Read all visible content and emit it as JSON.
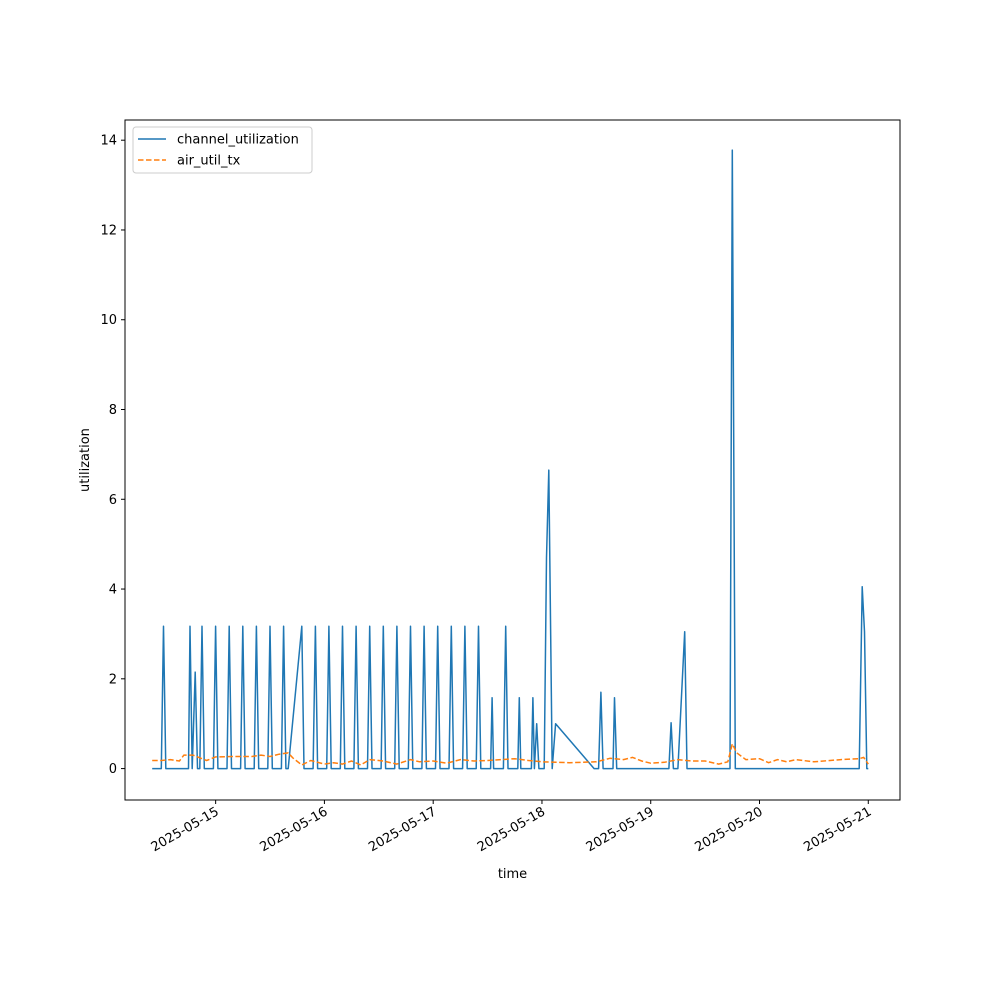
{
  "chart_data": {
    "type": "line",
    "title": "",
    "xlabel": "time",
    "ylabel": "utilization",
    "x_axis_type": "date",
    "xlim": [
      "2025-05-14 04:00",
      "2025-05-21 07:00"
    ],
    "ylim": [
      -0.7,
      14.45
    ],
    "x_ticks": [
      "2025-05-15",
      "2025-05-16",
      "2025-05-17",
      "2025-05-18",
      "2025-05-19",
      "2025-05-20",
      "2025-05-21"
    ],
    "y_ticks": [
      0,
      2,
      4,
      6,
      8,
      10,
      12,
      14
    ],
    "grid": false,
    "legend_position": "top-left",
    "series": [
      {
        "name": "channel_utilization",
        "color": "#1f77b4",
        "style": "solid",
        "points": [
          [
            "2025-05-14 10:00",
            0
          ],
          [
            "2025-05-14 11:00",
            0
          ],
          [
            "2025-05-14 12:00",
            0
          ],
          [
            "2025-05-14 12:30",
            3.17
          ],
          [
            "2025-05-14 13:00",
            0
          ],
          [
            "2025-05-14 14:00",
            0
          ],
          [
            "2025-05-14 17:00",
            0
          ],
          [
            "2025-05-14 18:00",
            0
          ],
          [
            "2025-05-14 18:20",
            3.17
          ],
          [
            "2025-05-14 18:50",
            0
          ],
          [
            "2025-05-14 19:30",
            2.15
          ],
          [
            "2025-05-14 20:00",
            0
          ],
          [
            "2025-05-14 20:30",
            0
          ],
          [
            "2025-05-14 21:00",
            3.17
          ],
          [
            "2025-05-14 21:30",
            0
          ],
          [
            "2025-05-14 23:30",
            0
          ],
          [
            "2025-05-15 00:00",
            3.17
          ],
          [
            "2025-05-15 00:30",
            0
          ],
          [
            "2025-05-15 02:30",
            0
          ],
          [
            "2025-05-15 03:00",
            3.17
          ],
          [
            "2025-05-15 03:30",
            0
          ],
          [
            "2025-05-15 05:30",
            0
          ],
          [
            "2025-05-15 06:00",
            3.17
          ],
          [
            "2025-05-15 06:30",
            0
          ],
          [
            "2025-05-15 08:30",
            0
          ],
          [
            "2025-05-15 09:00",
            3.17
          ],
          [
            "2025-05-15 09:30",
            0
          ],
          [
            "2025-05-15 11:30",
            0
          ],
          [
            "2025-05-15 12:00",
            3.17
          ],
          [
            "2025-05-15 12:30",
            0
          ],
          [
            "2025-05-15 14:30",
            0
          ],
          [
            "2025-05-15 15:00",
            3.17
          ],
          [
            "2025-05-15 15:30",
            0
          ],
          [
            "2025-05-15 16:00",
            0
          ],
          [
            "2025-05-15 19:00",
            3.17
          ],
          [
            "2025-05-15 19:30",
            0
          ],
          [
            "2025-05-15 21:30",
            0
          ],
          [
            "2025-05-15 22:00",
            3.17
          ],
          [
            "2025-05-15 22:30",
            0
          ],
          [
            "2025-05-16 00:30",
            0
          ],
          [
            "2025-05-16 01:00",
            3.17
          ],
          [
            "2025-05-16 01:30",
            0
          ],
          [
            "2025-05-16 03:30",
            0
          ],
          [
            "2025-05-16 04:00",
            3.17
          ],
          [
            "2025-05-16 04:30",
            0
          ],
          [
            "2025-05-16 06:30",
            0
          ],
          [
            "2025-05-16 07:00",
            3.17
          ],
          [
            "2025-05-16 07:30",
            0
          ],
          [
            "2025-05-16 09:30",
            0
          ],
          [
            "2025-05-16 10:00",
            3.17
          ],
          [
            "2025-05-16 10:30",
            0
          ],
          [
            "2025-05-16 12:30",
            0
          ],
          [
            "2025-05-16 13:00",
            3.17
          ],
          [
            "2025-05-16 13:30",
            0
          ],
          [
            "2025-05-16 15:30",
            0
          ],
          [
            "2025-05-16 16:00",
            3.17
          ],
          [
            "2025-05-16 16:30",
            0
          ],
          [
            "2025-05-16 18:30",
            0
          ],
          [
            "2025-05-16 19:00",
            3.17
          ],
          [
            "2025-05-16 19:30",
            0
          ],
          [
            "2025-05-16 21:30",
            0
          ],
          [
            "2025-05-16 22:00",
            3.17
          ],
          [
            "2025-05-16 22:30",
            0
          ],
          [
            "2025-05-17 00:30",
            0
          ],
          [
            "2025-05-17 01:00",
            3.17
          ],
          [
            "2025-05-17 01:30",
            0
          ],
          [
            "2025-05-17 03:30",
            0
          ],
          [
            "2025-05-17 04:00",
            3.17
          ],
          [
            "2025-05-17 04:30",
            0
          ],
          [
            "2025-05-17 06:30",
            0
          ],
          [
            "2025-05-17 07:00",
            3.17
          ],
          [
            "2025-05-17 07:30",
            0
          ],
          [
            "2025-05-17 09:30",
            0
          ],
          [
            "2025-05-17 10:00",
            3.17
          ],
          [
            "2025-05-17 10:30",
            0
          ],
          [
            "2025-05-17 12:40",
            0
          ],
          [
            "2025-05-17 13:00",
            1.58
          ],
          [
            "2025-05-17 13:20",
            0
          ],
          [
            "2025-05-17 15:30",
            0
          ],
          [
            "2025-05-17 16:00",
            3.17
          ],
          [
            "2025-05-17 16:30",
            0
          ],
          [
            "2025-05-17 18:40",
            0
          ],
          [
            "2025-05-17 19:00",
            1.58
          ],
          [
            "2025-05-17 19:20",
            0
          ],
          [
            "2025-05-17 21:40",
            0
          ],
          [
            "2025-05-17 22:00",
            1.58
          ],
          [
            "2025-05-17 22:20",
            0
          ],
          [
            "2025-05-17 22:50",
            1.0
          ],
          [
            "2025-05-17 23:20",
            0
          ],
          [
            "2025-05-18 00:30",
            0
          ],
          [
            "2025-05-18 01:00",
            4.7
          ],
          [
            "2025-05-18 01:30",
            6.65
          ],
          [
            "2025-05-18 02:15",
            0
          ],
          [
            "2025-05-18 03:00",
            1.0
          ],
          [
            "2025-05-18 11:30",
            0
          ],
          [
            "2025-05-18 12:30",
            0
          ],
          [
            "2025-05-18 13:00",
            1.7
          ],
          [
            "2025-05-18 13:30",
            0
          ],
          [
            "2025-05-18 15:40",
            0
          ],
          [
            "2025-05-18 16:00",
            1.58
          ],
          [
            "2025-05-18 16:30",
            0
          ],
          [
            "2025-05-19 04:00",
            0
          ],
          [
            "2025-05-19 04:30",
            1.02
          ],
          [
            "2025-05-19 05:00",
            0
          ],
          [
            "2025-05-19 06:00",
            0
          ],
          [
            "2025-05-19 07:30",
            3.05
          ],
          [
            "2025-05-19 08:00",
            0
          ],
          [
            "2025-05-19 17:30",
            0
          ],
          [
            "2025-05-19 18:00",
            13.78
          ],
          [
            "2025-05-19 18:40",
            0
          ],
          [
            "2025-05-20 22:00",
            0
          ],
          [
            "2025-05-20 22:40",
            4.05
          ],
          [
            "2025-05-20 23:10",
            3.05
          ],
          [
            "2025-05-20 23:40",
            0
          ],
          [
            "2025-05-21 00:00",
            0
          ]
        ]
      },
      {
        "name": "air_util_tx",
        "color": "#ff7f0e",
        "style": "dashed",
        "points": [
          [
            "2025-05-14 10:00",
            0.18
          ],
          [
            "2025-05-14 12:00",
            0.18
          ],
          [
            "2025-05-14 14:00",
            0.2
          ],
          [
            "2025-05-14 16:00",
            0.17
          ],
          [
            "2025-05-14 17:00",
            0.3
          ],
          [
            "2025-05-14 19:00",
            0.3
          ],
          [
            "2025-05-14 21:00",
            0.22
          ],
          [
            "2025-05-14 22:00",
            0.18
          ],
          [
            "2025-05-15 00:00",
            0.26
          ],
          [
            "2025-05-15 04:00",
            0.27
          ],
          [
            "2025-05-15 08:00",
            0.27
          ],
          [
            "2025-05-15 10:00",
            0.3
          ],
          [
            "2025-05-15 12:00",
            0.27
          ],
          [
            "2025-05-15 14:00",
            0.32
          ],
          [
            "2025-05-15 16:00",
            0.35
          ],
          [
            "2025-05-15 17:00",
            0.24
          ],
          [
            "2025-05-15 19:00",
            0.08
          ],
          [
            "2025-05-15 21:00",
            0.18
          ],
          [
            "2025-05-16 00:00",
            0.1
          ],
          [
            "2025-05-16 02:00",
            0.13
          ],
          [
            "2025-05-16 04:00",
            0.1
          ],
          [
            "2025-05-16 06:00",
            0.17
          ],
          [
            "2025-05-16 08:00",
            0.08
          ],
          [
            "2025-05-16 10:00",
            0.2
          ],
          [
            "2025-05-16 13:00",
            0.17
          ],
          [
            "2025-05-16 16:00",
            0.1
          ],
          [
            "2025-05-16 19:00",
            0.2
          ],
          [
            "2025-05-16 21:00",
            0.15
          ],
          [
            "2025-05-17 00:00",
            0.17
          ],
          [
            "2025-05-17 03:00",
            0.12
          ],
          [
            "2025-05-17 06:00",
            0.2
          ],
          [
            "2025-05-17 09:00",
            0.17
          ],
          [
            "2025-05-17 12:00",
            0.18
          ],
          [
            "2025-05-17 15:00",
            0.2
          ],
          [
            "2025-05-17 18:00",
            0.22
          ],
          [
            "2025-05-17 21:00",
            0.18
          ],
          [
            "2025-05-18 00:00",
            0.15
          ],
          [
            "2025-05-18 06:00",
            0.13
          ],
          [
            "2025-05-18 12:00",
            0.15
          ],
          [
            "2025-05-18 15:00",
            0.23
          ],
          [
            "2025-05-18 18:00",
            0.2
          ],
          [
            "2025-05-18 20:00",
            0.25
          ],
          [
            "2025-05-18 22:00",
            0.17
          ],
          [
            "2025-05-19 00:00",
            0.12
          ],
          [
            "2025-05-19 03:00",
            0.14
          ],
          [
            "2025-05-19 06:00",
            0.2
          ],
          [
            "2025-05-19 09:00",
            0.17
          ],
          [
            "2025-05-19 12:00",
            0.17
          ],
          [
            "2025-05-19 15:00",
            0.1
          ],
          [
            "2025-05-19 17:00",
            0.15
          ],
          [
            "2025-05-19 18:00",
            0.55
          ],
          [
            "2025-05-19 19:00",
            0.35
          ],
          [
            "2025-05-19 21:00",
            0.2
          ],
          [
            "2025-05-20 00:00",
            0.22
          ],
          [
            "2025-05-20 02:00",
            0.13
          ],
          [
            "2025-05-20 04:00",
            0.2
          ],
          [
            "2025-05-20 06:00",
            0.15
          ],
          [
            "2025-05-20 08:00",
            0.2
          ],
          [
            "2025-05-20 12:00",
            0.15
          ],
          [
            "2025-05-20 18:00",
            0.2
          ],
          [
            "2025-05-20 22:00",
            0.22
          ],
          [
            "2025-05-20 23:00",
            0.25
          ],
          [
            "2025-05-21 00:00",
            0.1
          ]
        ]
      }
    ]
  }
}
